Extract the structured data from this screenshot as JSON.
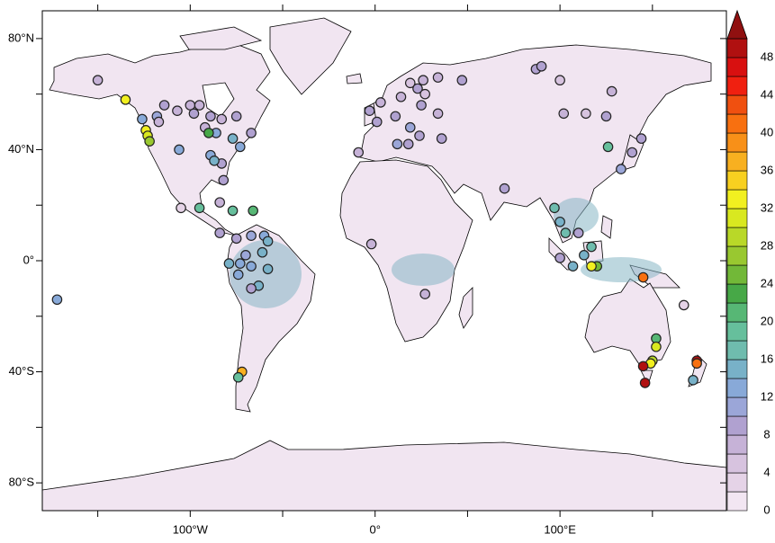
{
  "chart_data": {
    "type": "scatter-map",
    "xlim": [
      -180,
      190
    ],
    "ylim": [
      -90,
      90
    ],
    "xticks": [
      {
        "value": -100,
        "label": "100°W"
      },
      {
        "value": 0,
        "label": "0°"
      },
      {
        "value": 100,
        "label": "100°E"
      }
    ],
    "xminorticks": [
      -150,
      -50,
      50,
      150
    ],
    "yticks": [
      {
        "value": 80,
        "label": "80°N"
      },
      {
        "value": 40,
        "label": "40°N"
      },
      {
        "value": 0,
        "label": "0°"
      },
      {
        "value": -40,
        "label": "40°S"
      },
      {
        "value": -80,
        "label": "80°S"
      }
    ],
    "yminorticks": [
      60,
      20,
      -20,
      -60
    ],
    "lon": [
      -150,
      -135,
      -126,
      -124,
      -123,
      -122,
      -118,
      -117,
      -114,
      -107,
      -100,
      -98,
      -95,
      -89,
      -83,
      -75,
      -92,
      -86,
      -90,
      -77,
      -67,
      -73,
      -89,
      -83,
      -87,
      -106,
      -82,
      -84,
      -105,
      -95,
      -77,
      -66,
      -84,
      -75,
      -67,
      -60,
      -58,
      -70,
      -61,
      -79,
      -73,
      -67,
      -58,
      -74,
      -63,
      -67,
      -72,
      -74,
      -172,
      -9,
      -3,
      1,
      11,
      3,
      14,
      19,
      23,
      26,
      34,
      47,
      25,
      34,
      19,
      12,
      18,
      24,
      36,
      27,
      87,
      90,
      100,
      102,
      125,
      128,
      114,
      70,
      97,
      100,
      103,
      110,
      117,
      120,
      117,
      107,
      100,
      113,
      139,
      126,
      133,
      144,
      145,
      -2,
      27,
      152,
      152,
      150,
      149,
      145,
      146,
      167,
      174,
      174,
      172
    ],
    "lat": [
      65,
      58,
      51,
      47,
      45,
      43,
      52,
      50,
      56,
      54,
      56,
      53,
      56,
      52,
      51,
      52,
      48,
      46,
      46,
      44,
      46,
      41,
      38,
      35,
      36,
      40,
      29,
      21,
      19,
      19,
      18,
      18,
      10,
      8,
      9,
      9,
      7,
      2,
      3,
      -1,
      -1,
      -2,
      -3,
      -5,
      -9,
      -10,
      -40,
      -42,
      -14,
      39,
      54,
      50,
      52,
      57,
      59,
      64,
      62,
      65,
      66,
      65,
      56,
      53,
      48,
      42,
      42,
      45,
      44,
      60,
      69,
      70,
      65,
      53,
      52,
      61,
      53,
      26,
      19,
      14,
      10,
      10,
      5,
      -2,
      -2,
      -2,
      1,
      2,
      39,
      41,
      33,
      44,
      -6,
      6,
      -12,
      -28,
      -31,
      -36,
      -37,
      -38,
      -44,
      -16,
      -36,
      -37,
      -43
    ],
    "values": [
      6,
      33,
      12,
      33,
      30,
      27,
      10,
      6,
      8,
      6,
      6,
      8,
      6,
      8,
      6,
      8,
      6,
      12,
      22,
      14,
      8,
      12,
      12,
      8,
      14,
      12,
      8,
      6,
      2,
      18,
      18,
      20,
      8,
      8,
      10,
      12,
      14,
      10,
      14,
      14,
      12,
      12,
      14,
      12,
      14,
      8,
      36,
      18,
      12,
      6,
      8,
      8,
      8,
      6,
      6,
      4,
      8,
      6,
      6,
      8,
      8,
      6,
      10,
      10,
      8,
      8,
      8,
      4,
      8,
      8,
      4,
      6,
      8,
      6,
      4,
      8,
      16,
      14,
      16,
      8,
      16,
      24,
      33,
      14,
      8,
      14,
      8,
      18,
      10,
      8,
      40,
      6,
      6,
      20,
      30,
      28,
      33,
      48,
      48,
      2,
      48,
      40,
      14
    ],
    "colorbar": {
      "levels": [
        0,
        2,
        4,
        6,
        8,
        10,
        12,
        14,
        16,
        18,
        20,
        22,
        24,
        26,
        28,
        30,
        32,
        34,
        36,
        38,
        40,
        42,
        44,
        46,
        48,
        50
      ],
      "colors": [
        "#f2e6f2",
        "#e5d3e7",
        "#d7c3df",
        "#c6b2d7",
        "#b0a1d0",
        "#9ba6d8",
        "#88a9d8",
        "#78b1c8",
        "#6fbcae",
        "#66bf9c",
        "#57b775",
        "#47a847",
        "#72b838",
        "#99c830",
        "#b9d828",
        "#d9e820",
        "#f2f020",
        "#f8d020",
        "#f8b020",
        "#f89018",
        "#f87010",
        "#f05010",
        "#f02010",
        "#d81010",
        "#b01010",
        "#901010"
      ],
      "clim": [
        0,
        50
      ],
      "ticks": [
        0,
        4,
        8,
        12,
        16,
        20,
        24,
        28,
        32,
        36,
        40,
        44,
        48
      ]
    }
  }
}
